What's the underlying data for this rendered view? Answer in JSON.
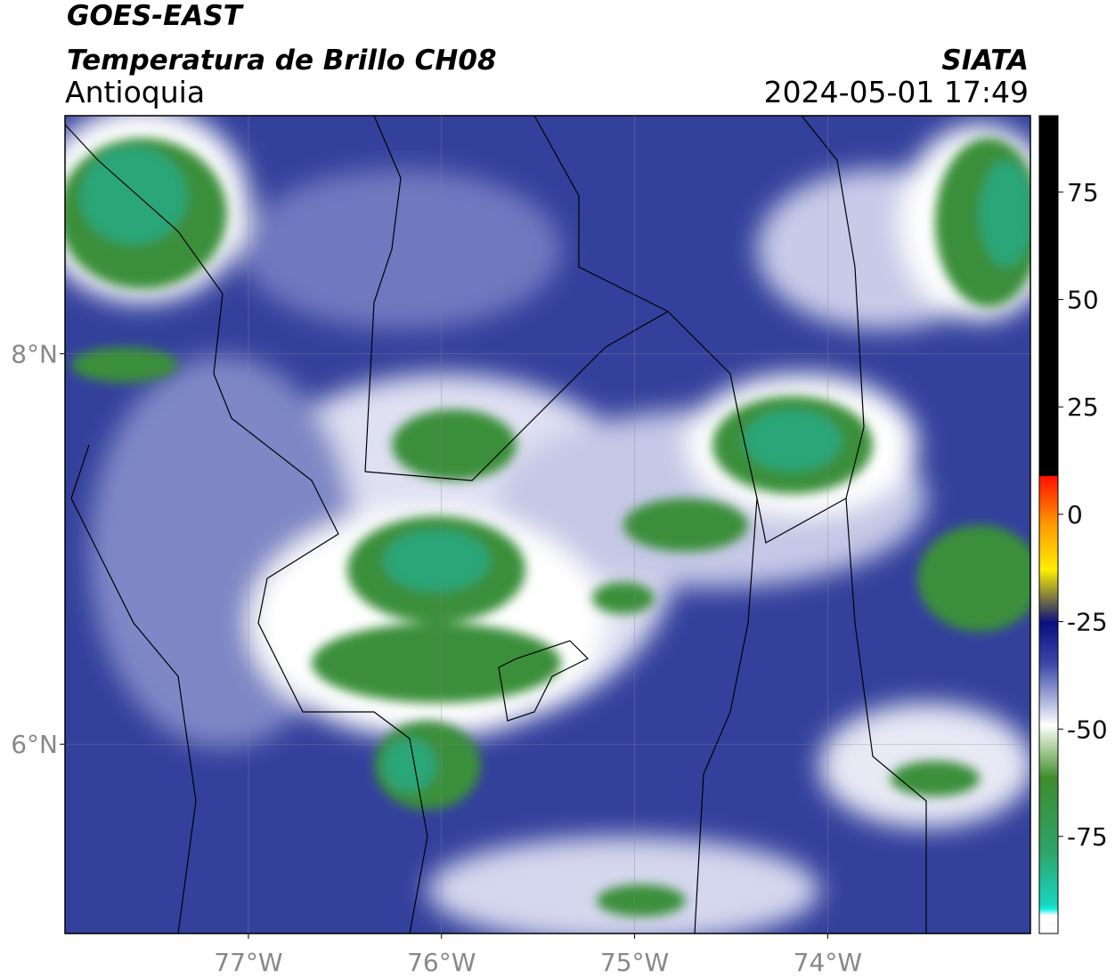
{
  "chart_data": {
    "type": "map",
    "title": "GOES-EAST",
    "subtitle": "Temperatura de Brillo CH08",
    "region": "Antioquia",
    "source": "SIATA",
    "datetime": "2024-05-01 17:49",
    "xlim": [
      -77.95,
      -72.95
    ],
    "ylim": [
      5.03,
      9.22
    ],
    "xticks": [
      {
        "value": -77,
        "label": "77°W"
      },
      {
        "value": -76,
        "label": "76°W"
      },
      {
        "value": -75,
        "label": "75°W"
      },
      {
        "value": -74,
        "label": "74°W"
      }
    ],
    "yticks": [
      {
        "value": 6,
        "label": "6°N"
      },
      {
        "value": 8,
        "label": "8°N"
      }
    ],
    "grid": true,
    "colorbar": {
      "lim": [
        -97.6,
        92.8
      ],
      "ticks": [
        -75,
        -50,
        -25,
        0,
        25,
        50,
        75
      ]
    }
  }
}
